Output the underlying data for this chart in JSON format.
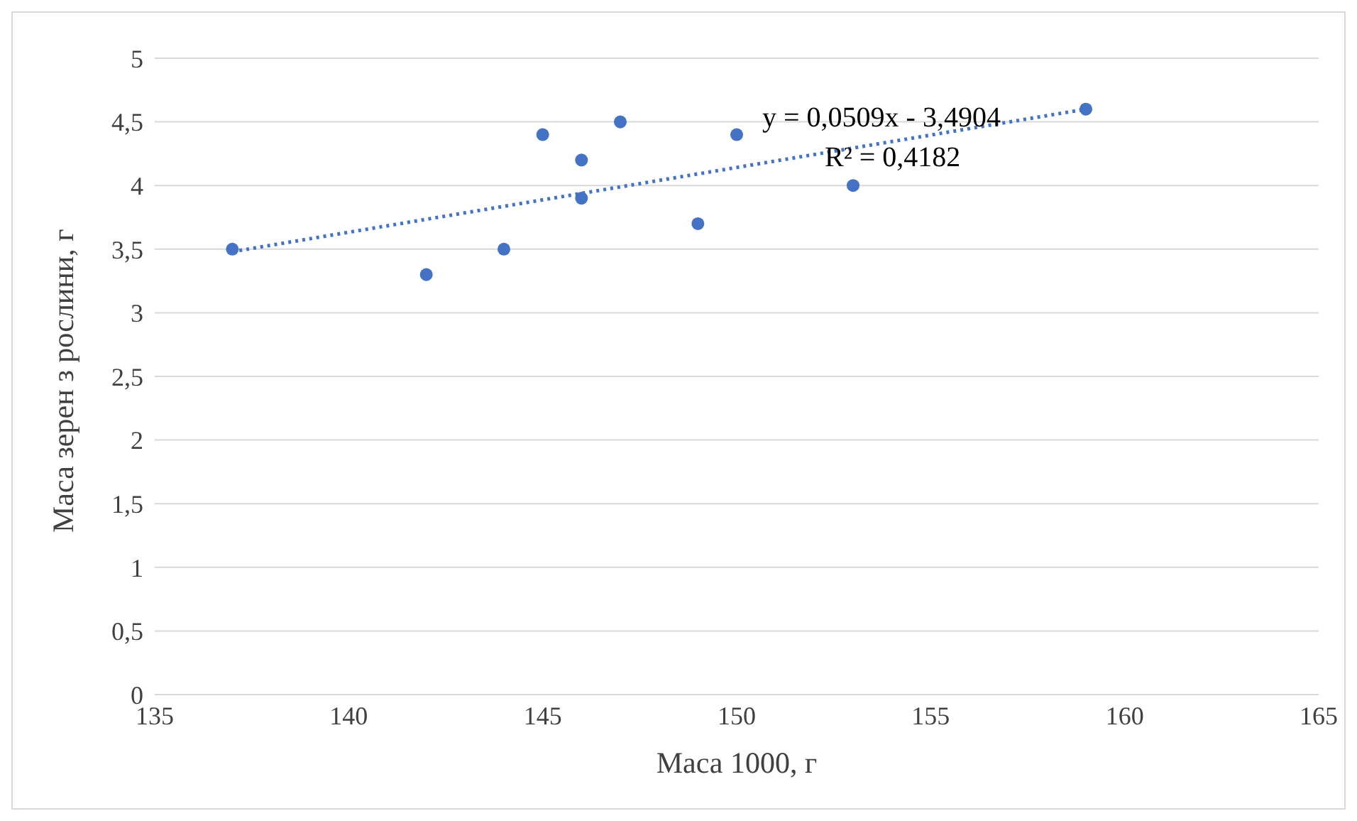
{
  "chart_data": {
    "type": "scatter",
    "xlabel": "Маса 1000, г",
    "ylabel": "Маса зерен з рослини, г",
    "x": [
      137,
      142,
      144,
      145,
      146,
      146,
      147,
      149,
      150,
      153,
      159
    ],
    "series": [
      {
        "color": "#4472c4",
        "marker": "circle",
        "values": [
          3.5,
          3.3,
          3.5,
          4.4,
          4.2,
          3.9,
          4.5,
          3.7,
          4.4,
          4.0,
          4.6
        ]
      },
      {
        "type": "line",
        "color": "#4472c4",
        "line_style": "dotted",
        "marker": "none",
        "x": [
          137,
          159
        ],
        "values": [
          3.48,
          4.6
        ]
      }
    ],
    "annotations": [
      "y = 0,0509x - 3,4904",
      "R² = 0,4182"
    ],
    "xlim": [
      135,
      165
    ],
    "xticks": [
      135,
      140,
      145,
      150,
      155,
      160,
      165
    ],
    "ylim": [
      0,
      5
    ],
    "yticks": [
      0,
      {
        "value": 0.5,
        "label": "0,5"
      },
      1,
      {
        "value": 1.5,
        "label": "1,5"
      },
      2,
      {
        "value": 2.5,
        "label": "2,5"
      },
      3,
      {
        "value": 3.5,
        "label": "3,5"
      },
      4,
      {
        "value": 4.5,
        "label": "4,5"
      },
      5
    ],
    "grid": "y",
    "legend": false
  }
}
